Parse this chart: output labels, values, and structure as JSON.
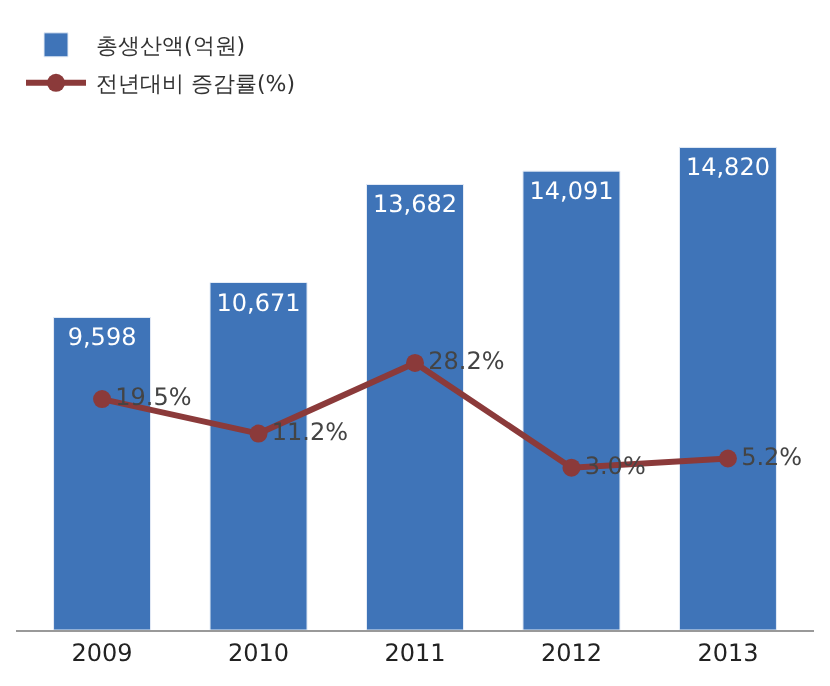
{
  "chart_data": {
    "type": "bar",
    "categories": [
      "2009",
      "2010",
      "2011",
      "2012",
      "2013"
    ],
    "series": [
      {
        "name": "총생산액(억원)",
        "color": "#3f74b8",
        "values": [
          9598,
          10671,
          13682,
          14091,
          14820
        ],
        "value_labels": [
          "9,598",
          "10,671",
          "13,682",
          "14,091",
          "14,820"
        ]
      },
      {
        "name": "전년대비 증감률(%)",
        "type": "line",
        "axis": "y2",
        "color": "#8b3a3a",
        "marker": "circle",
        "values": [
          19.5,
          11.2,
          28.2,
          3.0,
          5.2
        ],
        "value_labels": [
          "19.5%",
          "11.2%",
          "28.2%",
          "3.0%",
          "5.2%"
        ]
      }
    ],
    "tick_labels": "x",
    "legend": "top left"
  }
}
